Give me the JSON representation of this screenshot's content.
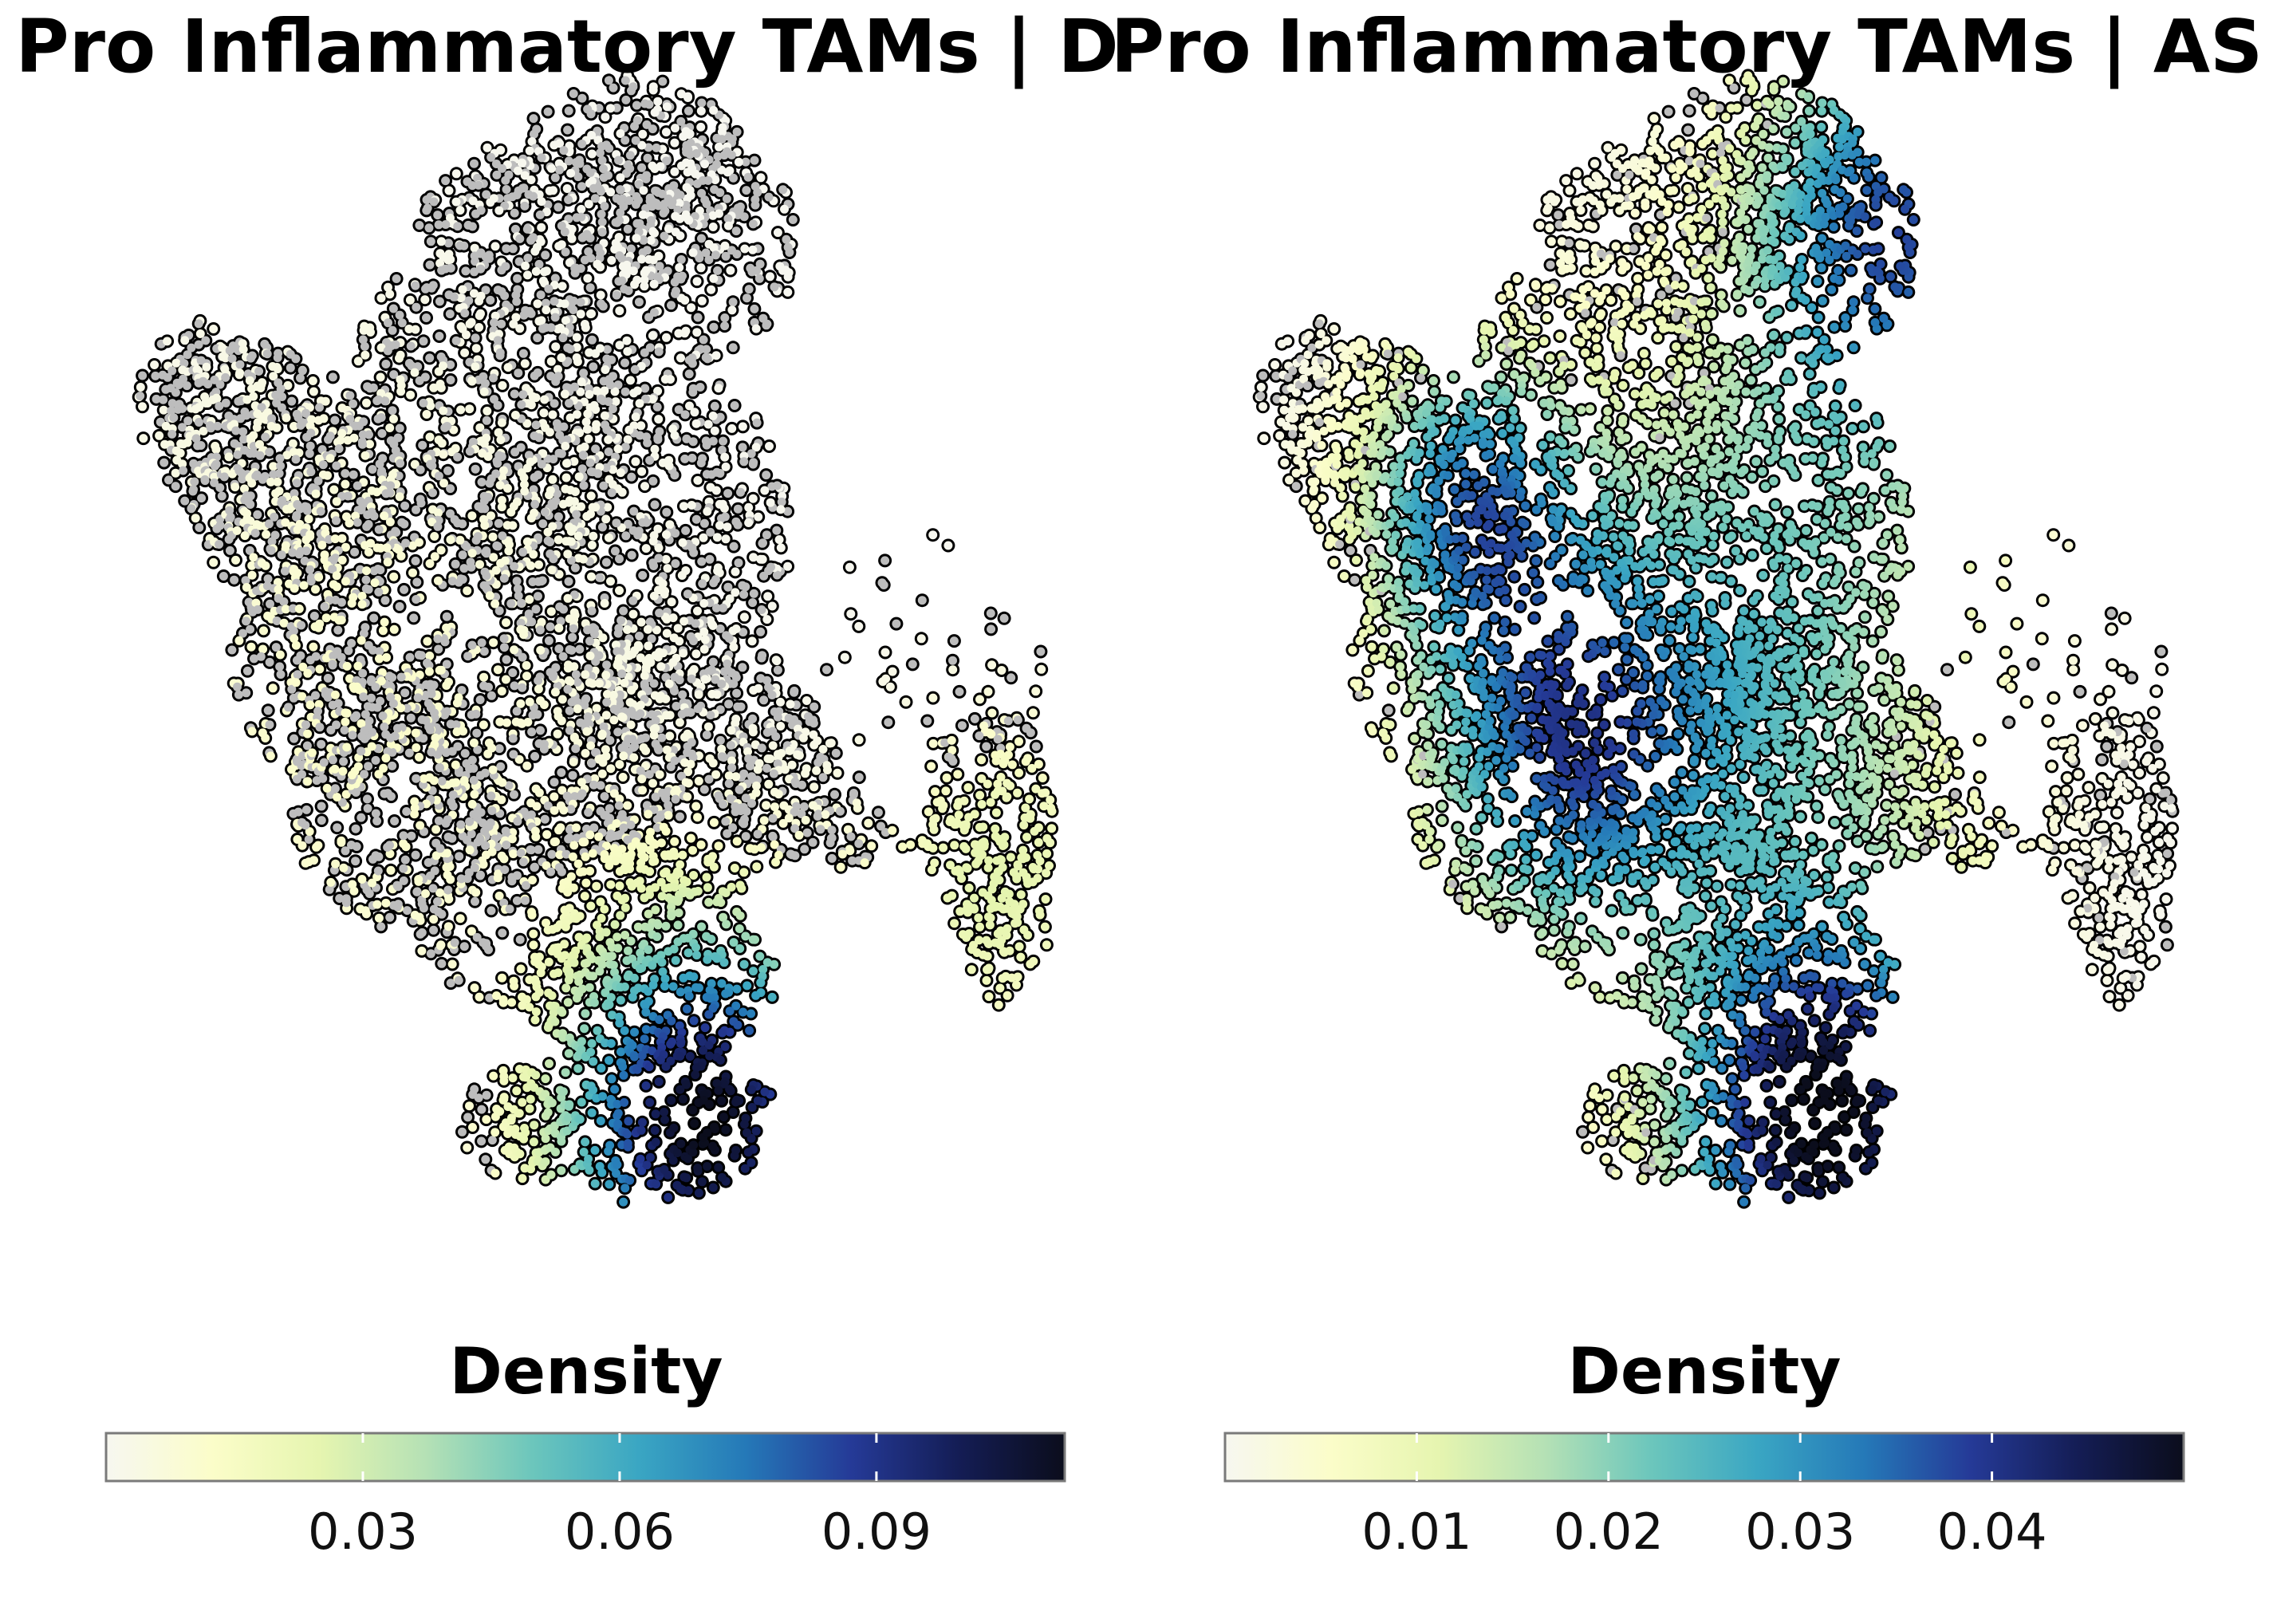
{
  "chart_data": [
    {
      "type": "scatter",
      "title": "Pro Inflammatory TAMs | D",
      "legend_title": "Density",
      "legend_placement": "bottom",
      "colorbar_ticks": [
        0.03,
        0.06,
        0.09
      ],
      "colorbar_range": [
        0.0,
        0.112
      ],
      "colormap": [
        "#f7f7f0",
        "#fbfdc9",
        "#e6f5b0",
        "#b5e1b5",
        "#6cc6bc",
        "#3aa6c3",
        "#2579b8",
        "#253a97",
        "#141d55",
        "#0b0d1c"
      ],
      "background_color": "#bdbdbd",
      "density_hotspots": [
        {
          "x": 2.6,
          "y": -4.6,
          "value": 0.112,
          "spread": 1.4
        },
        {
          "x": -2.5,
          "y": -0.7,
          "value": 0.012,
          "spread": 2.6
        },
        {
          "x": 6.8,
          "y": -2.1,
          "value": 0.025,
          "spread": 1.2
        }
      ],
      "grid": false
    },
    {
      "type": "scatter",
      "title": "Pro Inflammatory TAMs | AS",
      "legend_title": "Density",
      "legend_placement": "bottom",
      "colorbar_ticks": [
        0.01,
        0.02,
        0.03,
        0.04
      ],
      "colorbar_range": [
        0.0,
        0.05
      ],
      "colormap": [
        "#f7f7f0",
        "#fbfdc9",
        "#e6f5b0",
        "#b5e1b5",
        "#6cc6bc",
        "#3aa6c3",
        "#2579b8",
        "#253a97",
        "#141d55",
        "#0b0d1c"
      ],
      "background_color": "#bdbdbd",
      "density_hotspots": [
        {
          "x": 2.6,
          "y": -4.6,
          "value": 0.05,
          "spread": 1.5
        },
        {
          "x": 3.6,
          "y": 4.6,
          "value": 0.036,
          "spread": 1.5
        },
        {
          "x": -2.5,
          "y": 1.8,
          "value": 0.03,
          "spread": 1.1
        },
        {
          "x": -1.2,
          "y": -0.8,
          "value": 0.03,
          "spread": 1.4
        },
        {
          "x": 1.6,
          "y": 0.3,
          "value": 0.022,
          "spread": 2.2
        }
      ],
      "grid": false
    }
  ]
}
